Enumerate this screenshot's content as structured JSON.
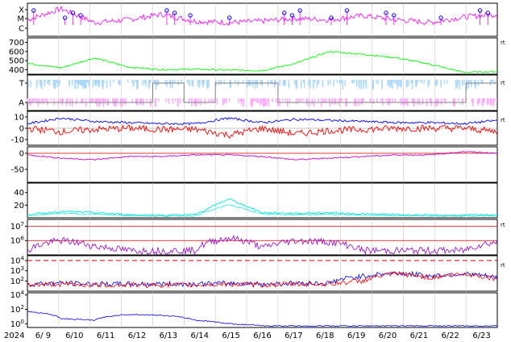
{
  "chart_data": [
    {
      "panel": "flare-class",
      "type": "line",
      "y_tick_labels": [
        "X",
        "M",
        "C"
      ],
      "y_scale": "log",
      "color": "#ff00ff",
      "marker_color": "#0000ff",
      "x": [
        "6/9",
        "6/10",
        "6/11",
        "6/12",
        "6/13",
        "6/14",
        "6/15",
        "6/16",
        "6/17",
        "6/18",
        "6/19",
        "6/20",
        "6/21",
        "6/22",
        "6/23"
      ],
      "series": [
        {
          "values": [
            2.2,
            3.0,
            2.0,
            2.2,
            2.6,
            2.1,
            2.0,
            2.1,
            2.3,
            2.2,
            2.5,
            2.2,
            2.0,
            2.4,
            2.6
          ]
        }
      ],
      "flare_peaks": [
        "6/9",
        "6/10",
        "6/10",
        "6/10",
        "6/13",
        "6/13",
        "6/14",
        "6/15",
        "6/17",
        "6/17",
        "6/17",
        "6/18",
        "6/19",
        "6/20",
        "6/20",
        "6/22",
        "6/23",
        "6/23"
      ]
    },
    {
      "panel": "solar-wind-speed",
      "type": "line",
      "color": "#00ff00",
      "yticks": [
        400,
        500,
        600,
        700
      ],
      "ylim": [
        350,
        750
      ],
      "x": [
        "6/9",
        "6/10",
        "6/11",
        "6/12",
        "6/13",
        "6/14",
        "6/15",
        "6/16",
        "6/17",
        "6/18",
        "6/19",
        "6/20",
        "6/21",
        "6/22",
        "6/23"
      ],
      "series": [
        {
          "values": [
            470,
            420,
            530,
            430,
            400,
            405,
            395,
            390,
            470,
            600,
            570,
            530,
            460,
            370,
            380
          ]
        }
      ]
    },
    {
      "panel": "imf-sector",
      "type": "line",
      "y_tick_labels": [
        "T",
        "A"
      ],
      "colors": [
        "#aad8ff",
        "#ffaaff",
        "#808080"
      ],
      "x": [
        "6/9",
        "6/10",
        "6/11",
        "6/12",
        "6/13",
        "6/14",
        "6/15",
        "6/16",
        "6/17",
        "6/18",
        "6/19",
        "6/20",
        "6/21",
        "6/22",
        "6/23"
      ],
      "series": [
        {
          "values": [
            0,
            0,
            0,
            0,
            1,
            0,
            1,
            1,
            0,
            0,
            0,
            0,
            0,
            0,
            1
          ]
        }
      ]
    },
    {
      "panel": "imf-field",
      "type": "line",
      "yticks": [
        -10,
        0,
        10
      ],
      "ylim": [
        -15,
        15
      ],
      "x": [
        "6/9",
        "6/10",
        "6/11",
        "6/12",
        "6/13",
        "6/14",
        "6/15",
        "6/16",
        "6/17",
        "6/18",
        "6/19",
        "6/20",
        "6/21",
        "6/22",
        "6/23"
      ],
      "series": [
        {
          "color": "#0000ff",
          "values": [
            4,
            9,
            6,
            5,
            4,
            4,
            9,
            5,
            8,
            7,
            6,
            5,
            5,
            4,
            7
          ]
        },
        {
          "color": "#ff0000",
          "values": [
            0,
            -3,
            -1,
            0,
            -1,
            -1,
            -6,
            0,
            -5,
            -2,
            -1,
            0,
            0,
            0,
            -3
          ]
        }
      ]
    },
    {
      "panel": "dst-index",
      "type": "line",
      "color": "#cc00cc",
      "yticks": [
        -50,
        0
      ],
      "ylim": [
        -90,
        20
      ],
      "x": [
        "6/9",
        "6/10",
        "6/11",
        "6/12",
        "6/13",
        "6/14",
        "6/15",
        "6/16",
        "6/17",
        "6/18",
        "6/19",
        "6/20",
        "6/21",
        "6/22",
        "6/23"
      ],
      "series": [
        {
          "values": [
            -5,
            -15,
            -20,
            -10,
            -10,
            -5,
            -5,
            -10,
            -20,
            -15,
            -10,
            -5,
            -5,
            5,
            0
          ]
        }
      ]
    },
    {
      "panel": "ae-index",
      "type": "line",
      "color": "#00e5e5",
      "yticks": [
        20,
        40
      ],
      "ylim": [
        0,
        55
      ],
      "x": [
        "6/9",
        "6/10",
        "6/11",
        "6/12",
        "6/13",
        "6/14",
        "6/15",
        "6/16",
        "6/17",
        "6/18",
        "6/19",
        "6/20",
        "6/21",
        "6/22",
        "6/23"
      ],
      "series": [
        {
          "values": [
            5,
            10,
            8,
            5,
            4,
            5,
            30,
            8,
            7,
            8,
            6,
            5,
            4,
            4,
            5
          ]
        }
      ]
    },
    {
      "panel": "high-energy-electron",
      "type": "line",
      "y_scale": "log",
      "yticks": [
        "10^6",
        "10^7"
      ],
      "colors": [
        "#cc0000",
        "#9900cc"
      ],
      "x": [
        "6/9",
        "6/10",
        "6/11",
        "6/12",
        "6/13",
        "6/14",
        "6/15",
        "6/16",
        "6/17",
        "6/18",
        "6/19",
        "6/20",
        "6/21",
        "6/22",
        "6/23"
      ],
      "series": [
        {
          "values": [
            200000,
            1000000,
            400000,
            200000,
            200000,
            200000,
            1500000,
            300000,
            1000000,
            800000,
            200000,
            200000,
            200000,
            200000,
            800000
          ]
        }
      ]
    },
    {
      "panel": "proton-flux",
      "type": "line",
      "y_scale": "log",
      "yticks": [
        "10^2",
        "10^3",
        "10^4"
      ],
      "series": [
        {
          "color": "#0000ff",
          "values": [
            50,
            60,
            50,
            50,
            50,
            50,
            60,
            50,
            60,
            60,
            300,
            600,
            300,
            500,
            200
          ]
        },
        {
          "color": "#ff0000",
          "values": [
            40,
            50,
            40,
            40,
            40,
            40,
            50,
            40,
            50,
            50,
            100,
            500,
            200,
            500,
            150
          ]
        }
      ],
      "threshold": 10000,
      "x": [
        "6/9",
        "6/10",
        "6/11",
        "6/12",
        "6/13",
        "6/14",
        "6/15",
        "6/16",
        "6/17",
        "6/18",
        "6/19",
        "6/20",
        "6/21",
        "6/22",
        "6/23"
      ]
    },
    {
      "panel": "low-energy-proton",
      "type": "line",
      "y_scale": "log",
      "yticks": [
        "10^0",
        "10^2",
        "10^4"
      ],
      "color": "#0000ff",
      "x": [
        "6/9",
        "6/10",
        "6/11",
        "6/12",
        "6/13",
        "6/14",
        "6/15",
        "6/16",
        "6/17",
        "6/18",
        "6/19",
        "6/20",
        "6/21",
        "6/22",
        "6/23"
      ],
      "series": [
        {
          "values": [
            50,
            5,
            3,
            20,
            15,
            3,
            1,
            0.5,
            0.5,
            0.5,
            0.5,
            0.5,
            0.5,
            0.5,
            0.5
          ]
        }
      ]
    }
  ],
  "x_axis": {
    "year_label": "2024",
    "ticks": [
      "6/ 9",
      "6/10",
      "6/11",
      "6/12",
      "6/13",
      "6/14",
      "6/15",
      "6/16",
      "6/17",
      "6/18",
      "6/19",
      "6/20",
      "6/21",
      "6/22",
      "6/23"
    ]
  },
  "right_marks": [
    "rt",
    "rt",
    "rt",
    "rt",
    "rt"
  ]
}
